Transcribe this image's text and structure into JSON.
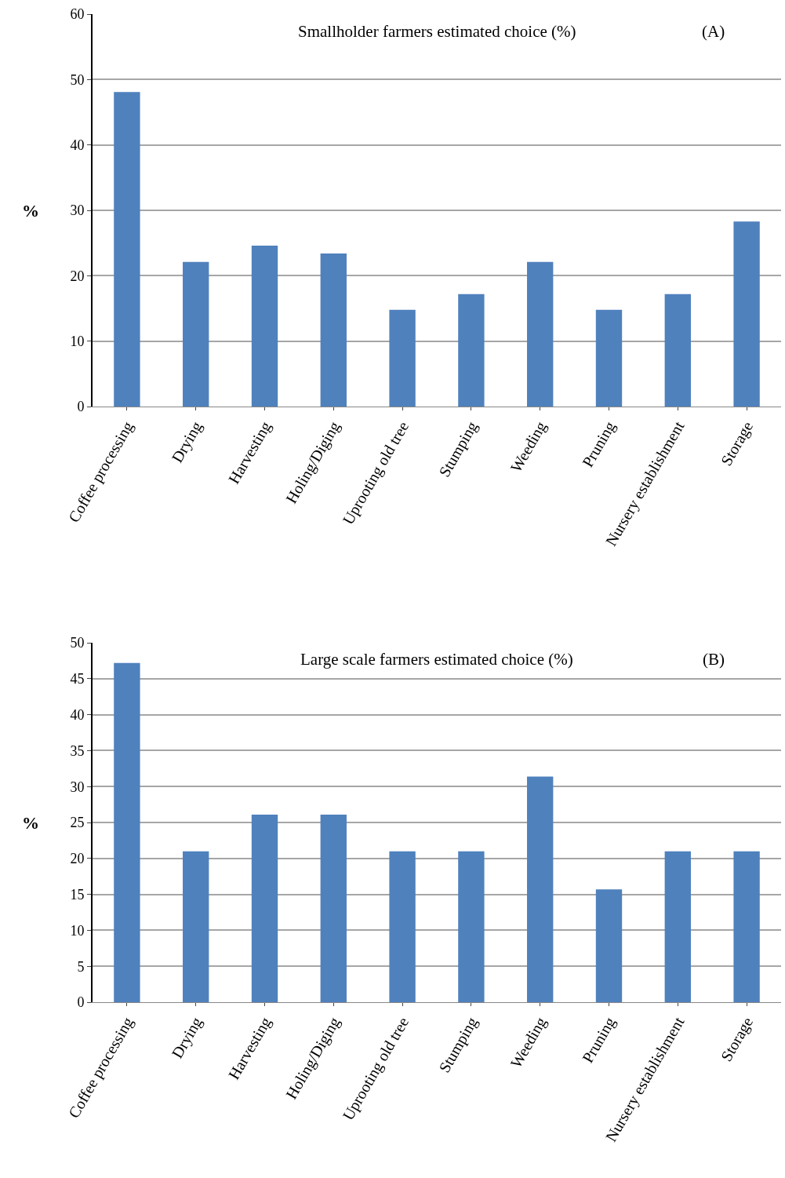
{
  "chart_data": [
    {
      "type": "bar",
      "title": "Smallholder farmers estimated choice (%)",
      "ylabel": "%",
      "annotations": [
        "(A)"
      ],
      "categories": [
        "Coffee processing",
        "Drying",
        "Harvesting",
        "Holing/Diging",
        "Uprooting old tree",
        "Stumping",
        "Weeding",
        "Pruning",
        "Nursery establishment",
        "Storage"
      ],
      "values": [
        48.1,
        22.1,
        24.6,
        23.4,
        14.8,
        17.2,
        22.1,
        14.8,
        17.2,
        28.3
      ],
      "color": "#4f81bd",
      "ylim": [
        0,
        60
      ],
      "yticks": [
        0,
        10,
        20,
        30,
        40,
        50,
        60
      ],
      "grid": "y"
    },
    {
      "type": "bar",
      "title": "Large scale farmers estimated choice (%)",
      "ylabel": "%",
      "annotations": [
        "(B)"
      ],
      "categories": [
        "Coffee processing",
        "Drying",
        "Harvesting",
        "Holing/Diging",
        "Uprooting old tree",
        "Stumping",
        "Weeding",
        "Pruning",
        "Nursery establishment",
        "Storage"
      ],
      "values": [
        47.2,
        21.0,
        26.1,
        26.1,
        21.0,
        21.0,
        31.4,
        15.7,
        21.0,
        21.0
      ],
      "color": "#4f81bd",
      "ylim": [
        0,
        50
      ],
      "yticks": [
        0,
        5,
        10,
        15,
        20,
        25,
        30,
        35,
        40,
        45,
        50
      ],
      "grid": "y"
    }
  ]
}
